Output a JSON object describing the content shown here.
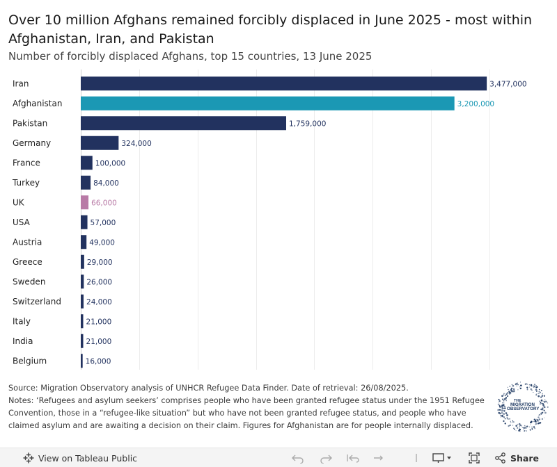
{
  "header": {
    "title": "Over 10 million Afghans remained forcibly displaced in June 2025 - most within Afghanistan, Iran, and Pakistan",
    "subtitle": "Number of forcibly displaced Afghans, top 15 countries, 13 June 2025"
  },
  "chart_data": {
    "type": "bar",
    "orientation": "horizontal",
    "title": "Over 10 million Afghans remained forcibly displaced in June 2025 - most within Afghanistan, Iran, and Pakistan",
    "subtitle": "Number of forcibly displaced Afghans, top 15 countries, 13 June 2025",
    "xlabel": "",
    "ylabel": "",
    "grid": true,
    "categories": [
      "Iran",
      "Afghanistan",
      "Pakistan",
      "Germany",
      "France",
      "Turkey",
      "UK",
      "USA",
      "Austria",
      "Greece",
      "Sweden",
      "Switzerland",
      "Italy",
      "India",
      "Belgium"
    ],
    "values": [
      3477000,
      3200000,
      1759000,
      324000,
      100000,
      84000,
      66000,
      57000,
      49000,
      29000,
      26000,
      24000,
      21000,
      21000,
      16000
    ],
    "value_labels": [
      "3,477,000",
      "3,200,000",
      "1,759,000",
      "324,000",
      "100,000",
      "84,000",
      "66,000",
      "57,000",
      "49,000",
      "29,000",
      "26,000",
      "24,000",
      "21,000",
      "21,000",
      "16,000"
    ],
    "bar_colors": [
      "#22325f",
      "#1b98b4",
      "#22325f",
      "#22325f",
      "#22325f",
      "#22325f",
      "#b87aa6",
      "#22325f",
      "#22325f",
      "#22325f",
      "#22325f",
      "#22325f",
      "#22325f",
      "#22325f",
      "#22325f"
    ],
    "colors": {
      "default": "#22325f",
      "afghanistan": "#1b98b4",
      "uk": "#b87aa6"
    },
    "xlim": [
      0,
      3500000
    ],
    "gridlines": [
      0,
      500000,
      1000000,
      1500000,
      2000000,
      2500000,
      3000000,
      3500000
    ]
  },
  "notes": {
    "source": "Source: Migration Observatory analysis of UNHCR Refugee Data Finder. Date of retrieval: 26/08/2025.",
    "text": "Notes: ‘Refugees and asylum seekers’ comprises people who have been granted refugee status under the 1951 Refugee Convention, those in a “refugee-like situation” but who have not been granted refugee status, and people who have claimed asylum and are awaiting a decision on their claim. Figures for Afghanistan are for people internally displaced."
  },
  "logo": {
    "line1": "THE",
    "line2": "MIGRATION",
    "line3": "OBSERVATORY",
    "color": "#1f3a63"
  },
  "toolbar": {
    "view_label": "View on Tableau Public",
    "share_label": "Share",
    "icons": [
      "tableau-icon",
      "undo-icon",
      "redo-icon",
      "revert-icon",
      "refresh-icon",
      "pause-icon",
      "download-icon",
      "fullscreen-icon",
      "share-icon"
    ]
  }
}
